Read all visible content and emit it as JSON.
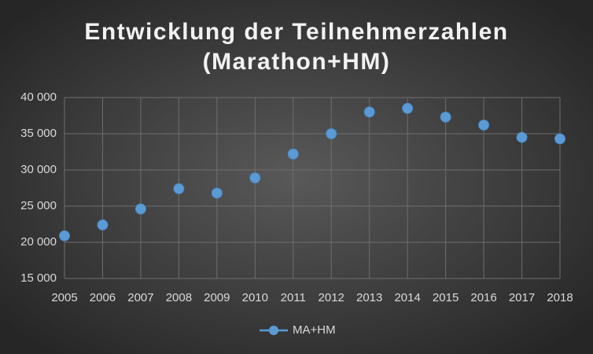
{
  "chart_data": {
    "type": "line",
    "title": [
      "Entwicklung der Teilnehmerzahlen",
      "(Marathon+HM)"
    ],
    "categories": [
      "2005",
      "2006",
      "2007",
      "2008",
      "2009",
      "2010",
      "2011",
      "2012",
      "2013",
      "2014",
      "2015",
      "2016",
      "2017",
      "2018"
    ],
    "series": [
      {
        "name": "MA+HM",
        "color": "#5b9bd5",
        "values": [
          20900,
          22400,
          24600,
          27400,
          26800,
          28900,
          32200,
          35000,
          38000,
          38500,
          37300,
          36200,
          34500,
          34300
        ]
      }
    ],
    "ylim": [
      15000,
      40000
    ],
    "yticks": [
      {
        "value": 15000,
        "label": "15 000"
      },
      {
        "value": 20000,
        "label": "20 000"
      },
      {
        "value": 25000,
        "label": "25 000"
      },
      {
        "value": 30000,
        "label": "30 000"
      },
      {
        "value": 35000,
        "label": "35 000"
      },
      {
        "value": 40000,
        "label": "40 000"
      }
    ],
    "grid": true,
    "legend": "bottom"
  }
}
